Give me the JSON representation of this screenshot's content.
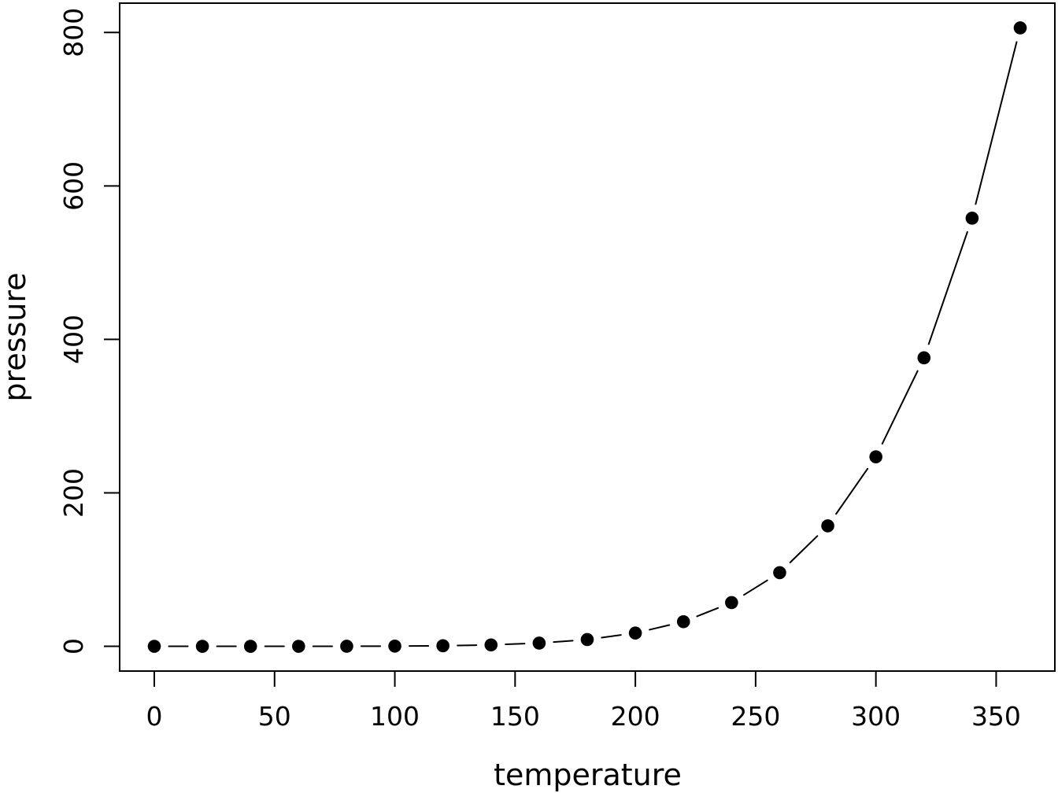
{
  "figure": {
    "background_color": "#ffffff",
    "foreground_color": "#000000"
  },
  "chart_data": {
    "type": "line",
    "subtype": "points-with-line-segments",
    "title": "",
    "xlabel": "temperature",
    "ylabel": "pressure",
    "x": [
      0,
      20,
      40,
      60,
      80,
      100,
      120,
      140,
      160,
      180,
      200,
      220,
      240,
      260,
      280,
      300,
      320,
      340,
      360
    ],
    "y": [
      0.0002,
      0.0012,
      0.006,
      0.03,
      0.09,
      0.27,
      0.75,
      1.85,
      4.2,
      8.8,
      17.3,
      32.1,
      57.0,
      96.0,
      157.0,
      247.0,
      376.0,
      558.0,
      806.0
    ],
    "xticks": [
      0,
      50,
      100,
      150,
      200,
      250,
      300,
      350
    ],
    "yticks": [
      0,
      200,
      400,
      600,
      800
    ],
    "xlim": [
      -14.4,
      374.4
    ],
    "ylim": [
      -32.24,
      838.24
    ],
    "grid": false,
    "legend": false,
    "marker": "filled-circle",
    "marker_color": "#000000",
    "line_color": "#000000",
    "frame": "full-box"
  }
}
